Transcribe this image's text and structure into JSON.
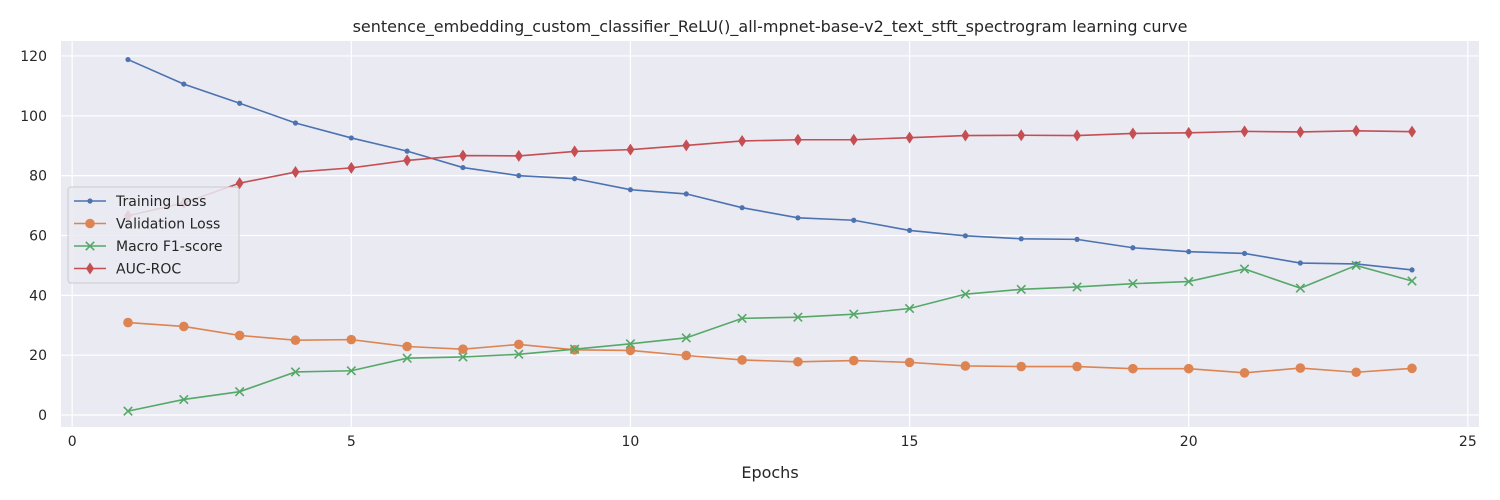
{
  "chart_data": {
    "type": "line",
    "title": "sentence_embedding_custom_classifier_ReLU()_all-mpnet-base-v2_text_stft_spectrogram learning curve",
    "xlabel": "Epochs",
    "ylabel": "",
    "xlim": [
      -0.2,
      25.2
    ],
    "ylim": [
      -4,
      125
    ],
    "xticks": [
      0,
      5,
      10,
      15,
      20,
      25
    ],
    "yticks": [
      0,
      20,
      40,
      60,
      80,
      100,
      120
    ],
    "grid": true,
    "legend_position": "center-left",
    "x": [
      1,
      2,
      3,
      4,
      5,
      6,
      7,
      8,
      9,
      10,
      11,
      12,
      13,
      14,
      15,
      16,
      17,
      18,
      19,
      20,
      21,
      22,
      23,
      24
    ],
    "series": [
      {
        "name": "Training Loss",
        "color": "#4c72b0",
        "marker": "point",
        "values": [
          118.8,
          110.6,
          104.2,
          97.6,
          92.6,
          88.2,
          82.7,
          80.0,
          79.0,
          75.3,
          73.9,
          69.3,
          65.9,
          65.1,
          61.7,
          59.9,
          58.9,
          58.7,
          55.9,
          54.6,
          54.0,
          50.8,
          50.5,
          48.5
        ]
      },
      {
        "name": "Validation Loss",
        "color": "#dd8452",
        "marker": "circle",
        "values": [
          30.9,
          29.6,
          26.6,
          25.0,
          25.2,
          22.9,
          22.0,
          23.6,
          21.8,
          21.6,
          19.9,
          18.4,
          17.8,
          18.2,
          17.6,
          16.4,
          16.2,
          16.2,
          15.5,
          15.5,
          14.1,
          15.7,
          14.3,
          15.6
        ]
      },
      {
        "name": "Macro F1-score",
        "color": "#55a868",
        "marker": "x",
        "values": [
          1.3,
          5.2,
          7.8,
          14.4,
          14.8,
          19.0,
          19.4,
          20.3,
          22.0,
          23.8,
          25.8,
          32.3,
          32.7,
          33.7,
          35.6,
          40.4,
          42.0,
          42.8,
          43.9,
          44.6,
          48.8,
          42.4,
          50.0,
          44.8
        ]
      },
      {
        "name": "AUC-ROC",
        "color": "#c44e52",
        "marker": "diamond",
        "values": [
          66.6,
          70.9,
          77.5,
          81.2,
          82.6,
          85.1,
          86.7,
          86.6,
          88.1,
          88.7,
          90.1,
          91.6,
          92.0,
          92.0,
          92.7,
          93.4,
          93.5,
          93.4,
          94.1,
          94.3,
          94.8,
          94.6,
          95.0,
          94.7
        ]
      }
    ]
  }
}
